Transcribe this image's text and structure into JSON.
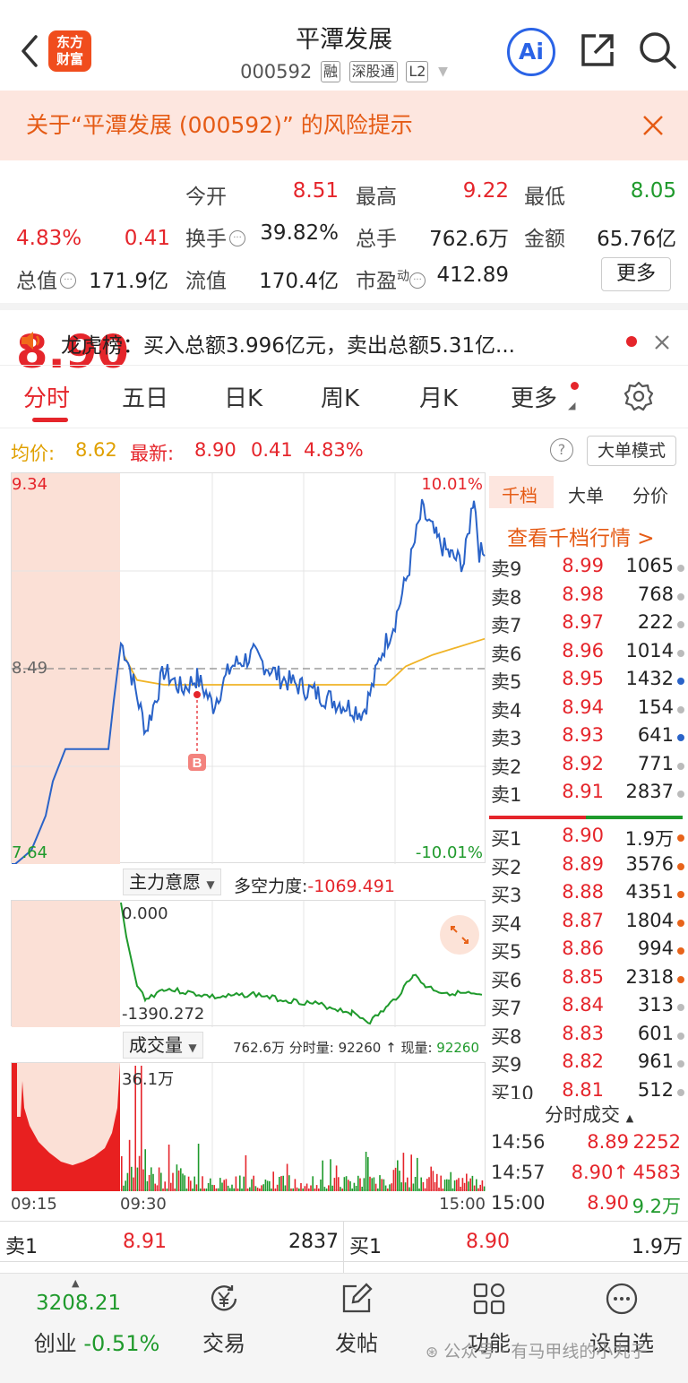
{
  "header": {
    "title": "平潭发展",
    "code": "000592",
    "tags": [
      "融",
      "深股通",
      "L2"
    ],
    "logo_line1": "东方",
    "logo_line2": "财富",
    "ai_label": "Ai"
  },
  "risk_banner": {
    "text": "关于“平潭发展 (000592)” 的风险提示"
  },
  "quote": {
    "price": "8.90",
    "change_pct": "4.83%",
    "change": "0.41",
    "open_label": "今开",
    "open": "8.51",
    "high_label": "最高",
    "high": "9.22",
    "low_label": "最低",
    "low": "8.05",
    "turnover_label": "换手",
    "turnover": "39.82%",
    "volume_label": "总手",
    "volume": "762.6万",
    "amount_label": "金额",
    "amount": "65.76亿",
    "mcap_label": "总值",
    "mcap": "171.9亿",
    "float_label": "流值",
    "float": "170.4亿",
    "pe_label": "市盈",
    "pe_sup": "动",
    "pe": "412.89",
    "more_label": "更多"
  },
  "dragon_tiger": {
    "text": "龙虎榜：买入总额3.996亿元，卖出总额5.31亿..."
  },
  "tabs": [
    "分时",
    "五日",
    "日K",
    "周K",
    "月K",
    "更多"
  ],
  "infobar": {
    "avg_label": "均价:",
    "avg": "8.62",
    "latest_label": "最新:",
    "latest": "8.90",
    "change": "0.41",
    "change_pct": "4.83%",
    "help": "?",
    "bigorder_label": "大单模式"
  },
  "main_chart": {
    "y_top": "9.34",
    "y_ref": "8.49",
    "y_bottom": "7.64",
    "pct_top": "10.01%",
    "pct_bottom": "-10.01%",
    "marker_label": "B"
  },
  "indicator": {
    "selector": "主力意愿",
    "force_label": "多空力度:",
    "force_value": "-1069.491",
    "top_value": "0.000",
    "bottom_value": "-1390.272"
  },
  "volume_panel": {
    "selector": "成交量",
    "total": "762.6万",
    "tick_vol_label": "分时量:",
    "tick_vol": "92260",
    "arrow": "↑",
    "now_label": "现量:",
    "now_vol": "92260",
    "max_label": "36.1万"
  },
  "time_axis": {
    "start": "09:15",
    "mid": "09:30",
    "end": "15:00"
  },
  "orderbook": {
    "tabs": [
      "千档",
      "大单",
      "分价"
    ],
    "link": "查看千档行情 >",
    "asks": [
      {
        "label": "卖9",
        "price": "8.99",
        "vol": "1065",
        "dot": "#bbbbbb"
      },
      {
        "label": "卖8",
        "price": "8.98",
        "vol": "768",
        "dot": "#bbbbbb"
      },
      {
        "label": "卖7",
        "price": "8.97",
        "vol": "222",
        "dot": "#bbbbbb"
      },
      {
        "label": "卖6",
        "price": "8.96",
        "vol": "1014",
        "dot": "#bbbbbb"
      },
      {
        "label": "卖5",
        "price": "8.95",
        "vol": "1432",
        "dot": "#2a63c8"
      },
      {
        "label": "卖4",
        "price": "8.94",
        "vol": "154",
        "dot": "#bbbbbb"
      },
      {
        "label": "卖3",
        "price": "8.93",
        "vol": "641",
        "dot": "#2a63c8"
      },
      {
        "label": "卖2",
        "price": "8.92",
        "vol": "771",
        "dot": "#bbbbbb"
      },
      {
        "label": "卖1",
        "price": "8.91",
        "vol": "2837",
        "dot": "#bbbbbb"
      }
    ],
    "bids": [
      {
        "label": "买1",
        "price": "8.90",
        "vol": "1.9万",
        "dot": "#e8631a"
      },
      {
        "label": "买2",
        "price": "8.89",
        "vol": "3576",
        "dot": "#e8631a"
      },
      {
        "label": "买3",
        "price": "8.88",
        "vol": "4351",
        "dot": "#e8631a"
      },
      {
        "label": "买4",
        "price": "8.87",
        "vol": "1804",
        "dot": "#e8631a"
      },
      {
        "label": "买5",
        "price": "8.86",
        "vol": "994",
        "dot": "#e8631a"
      },
      {
        "label": "买6",
        "price": "8.85",
        "vol": "2318",
        "dot": "#e8631a"
      },
      {
        "label": "买7",
        "price": "8.84",
        "vol": "313",
        "dot": "#bbbbbb"
      },
      {
        "label": "买8",
        "price": "8.83",
        "vol": "601",
        "dot": "#bbbbbb"
      },
      {
        "label": "买9",
        "price": "8.82",
        "vol": "961",
        "dot": "#bbbbbb"
      },
      {
        "label": "买10",
        "price": "8.81",
        "vol": "512",
        "dot": "#bbbbbb"
      }
    ]
  },
  "ticks": {
    "header": "分时成交",
    "rows": [
      {
        "time": "14:56",
        "price": "8.89",
        "vol": "2252",
        "vol_color": "#e5252b"
      },
      {
        "time": "14:57",
        "price": "8.90↑",
        "vol": "4583",
        "vol_color": "#e5252b"
      },
      {
        "time": "15:00",
        "price": "8.90",
        "vol": "9.2万",
        "vol_color": "#1f9a2c"
      }
    ]
  },
  "bottom_quote": {
    "sell_label": "卖1",
    "sell_price": "8.91",
    "sell_vol": "2837",
    "buy_label": "买1",
    "buy_price": "8.90",
    "buy_vol": "1.9万"
  },
  "tabbar": {
    "index_value": "3208.21",
    "index_name": "创业",
    "index_change": "-0.51%",
    "items": [
      "交易",
      "发帖",
      "功能",
      "设自选"
    ]
  },
  "watermark": "公众号 · 有马甲线的小丸子",
  "colors": {
    "up": "#e5252b",
    "down": "#1f9a2c",
    "price_line": "#2a63c8",
    "avg_line": "#f0b428",
    "accent": "#e55b15"
  }
}
